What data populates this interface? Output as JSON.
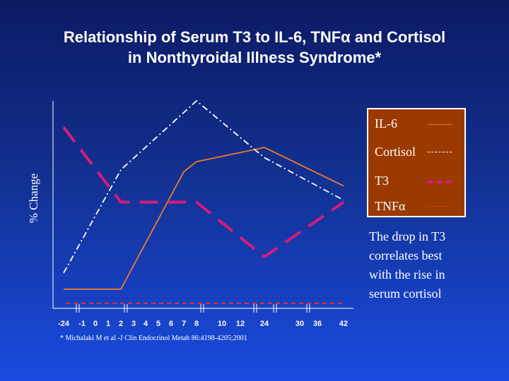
{
  "slide": {
    "title_line1": "Relationship of Serum T3 to IL-6, TNFα and Cortisol",
    "title_line2": "in Nonthyroidal Illness Syndrome*",
    "note_lines": [
      "The drop in T3",
      "correlates best",
      "with the rise in",
      "serum cortisol"
    ],
    "footnote": "* Michalaki M et al -J Clin Endocrinol Metab 86:4198-4205;2001"
  },
  "colors": {
    "il6": "#f07a2a",
    "cortisol": "#ffffff",
    "t3": "#d81b7a",
    "tnf": "#e0303a",
    "legend_bg": "#9b3a00"
  },
  "chart_data": {
    "type": "line",
    "title": "Relationship of Serum T3 to IL-6, TNFα and Cortisol in Nonthyroidal Illness Syndrome*",
    "xlabel": "",
    "ylabel": "% Change",
    "x_ticks": [
      "-24",
      "-1",
      "0",
      "1",
      "2",
      "3",
      "4",
      "5",
      "6",
      "7",
      "8",
      "10",
      "12",
      "24",
      "30",
      "36",
      "42"
    ],
    "axis_breaks_after": [
      "-24",
      "2",
      "8",
      "24",
      "30"
    ],
    "ylim": [
      0,
      100
    ],
    "grid": false,
    "legend_position": "right",
    "series": [
      {
        "name": "IL-6",
        "style": "solid",
        "x": [
          "-24",
          "2",
          "7",
          "8",
          "24",
          "42"
        ],
        "values": [
          7,
          7,
          65,
          70,
          77,
          58
        ]
      },
      {
        "name": "Cortisol",
        "style": "dash-dot",
        "x": [
          "-24",
          "2",
          "8",
          "24",
          "42"
        ],
        "values": [
          15,
          66,
          100,
          72,
          51
        ]
      },
      {
        "name": "T3",
        "style": "long-dash",
        "x": [
          "-24",
          "2",
          "7",
          "8",
          "24",
          "42"
        ],
        "values": [
          87,
          50,
          50,
          50,
          23,
          50
        ]
      },
      {
        "name": "TNFα",
        "style": "dashed",
        "x": [
          "-24",
          "42"
        ],
        "values": [
          0,
          0
        ]
      }
    ]
  }
}
